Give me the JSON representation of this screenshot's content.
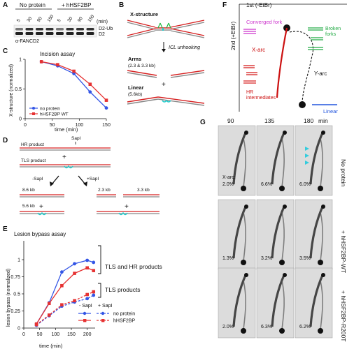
{
  "panels": {
    "A": {
      "letter": "A",
      "group_left": "No protein",
      "group_right": "+ hHSF2BP",
      "lanes": [
        "5",
        "30",
        "90",
        "150",
        "5",
        "30",
        "90",
        "150"
      ],
      "unit": "(min)",
      "band_top": "D2-Ub",
      "band_bottom": "D2",
      "antibody": "α-FANCD2"
    },
    "B": {
      "letter": "B",
      "x_structure": "X-structure",
      "step": "ICL unhooking",
      "arms": "Arms",
      "arms_size": "(2.3 & 3.3 kb)",
      "linear": "Linear",
      "linear_size": "(5.6kb)",
      "plus": "+"
    },
    "C": {
      "letter": "C"
    },
    "D": {
      "letter": "D",
      "sapi": "SapI",
      "hr_product": "HR product",
      "tls_product": "TLS product",
      "plus": "+",
      "minus_sapi": "-SapI",
      "plus_sapi": "+SapI",
      "kb86": "8.6 kb",
      "kb56": "5.6 kb",
      "kb23": "2.3 kb",
      "kb33": "3.3 kb"
    },
    "E": {
      "letter": "E"
    },
    "F": {
      "letter": "F",
      "axis_1st": "1st (-EtBr)",
      "axis_2nd": "2nd (+EtBr)",
      "converged_fork": "Converged fork",
      "x_arc": "X-arc",
      "broken_forks_1": "Broken",
      "broken_forks_2": "forks",
      "y_arc": "Y-arc",
      "hr_1": "HR",
      "hr_2": "intermediates",
      "linear": "Linear"
    },
    "G": {
      "letter": "G",
      "times": [
        "90",
        "135",
        "180"
      ],
      "unit": "min",
      "rows": [
        {
          "label": "No protein",
          "values": [
            "2.0%",
            "6.6%",
            "6.0%"
          ],
          "x_arc": "X-arc:"
        },
        {
          "label": "+ hHSF2BP-WT",
          "values": [
            "1.3%",
            "3.2%",
            "3.5%"
          ]
        },
        {
          "label": "+ hHSF2BP-R200T",
          "values": [
            "2.0%",
            "6.3%",
            "6.2%"
          ]
        }
      ]
    }
  },
  "chart_data": [
    {
      "type": "line",
      "title": "Incision assay",
      "xlabel": "time (min)",
      "ylabel": "X-structure (normalized)",
      "xlim": [
        0,
        150
      ],
      "ylim": [
        0,
        1.0
      ],
      "xticks": [
        0,
        50,
        100,
        150
      ],
      "yticks": [
        0,
        0.5,
        1.0
      ],
      "x": [
        30,
        60,
        90,
        120,
        150
      ],
      "series": [
        {
          "name": "no protein",
          "color": "#3355e6",
          "values": [
            0.96,
            0.89,
            0.76,
            0.45,
            0.18
          ]
        },
        {
          "name": "hHSF2BP WT",
          "color": "#e63232",
          "values": [
            0.96,
            0.91,
            0.8,
            0.58,
            0.31
          ]
        }
      ],
      "legend": "bottom-left"
    },
    {
      "type": "line",
      "title": "Lesion bypass assay",
      "xlabel": "time (min)",
      "ylabel": "lesion bypass (normalized)",
      "xlim": [
        0,
        225
      ],
      "ylim": [
        0,
        1.0
      ],
      "xticks": [
        0,
        50,
        100,
        150,
        200
      ],
      "yticks": [
        0,
        0.25,
        0.5,
        0.75,
        1.0
      ],
      "x": [
        40,
        80,
        120,
        160,
        200,
        220
      ],
      "series": [
        {
          "name": "no protein",
          "group": "- SapI",
          "color": "#3355e6",
          "dashed": false,
          "values": [
            0.06,
            0.37,
            0.82,
            0.94,
            0.99,
            0.96
          ]
        },
        {
          "name": "hHSF2BP",
          "group": "- SapI",
          "color": "#e63232",
          "dashed": false,
          "values": [
            0.06,
            0.36,
            0.62,
            0.8,
            0.88,
            0.84
          ]
        },
        {
          "name": "no protein",
          "group": "+ SapI",
          "color": "#3355e6",
          "dashed": true,
          "values": [
            0.04,
            0.18,
            0.32,
            0.38,
            0.43,
            0.48
          ]
        },
        {
          "name": "hHSF2BP",
          "group": "+ SapI",
          "color": "#e63232",
          "dashed": true,
          "values": [
            0.05,
            0.19,
            0.34,
            0.4,
            0.49,
            0.53
          ]
        }
      ],
      "annotations": [
        "TLS and HR products",
        "TLS products"
      ],
      "legend_groups": [
        "- SapI",
        "+ SapI"
      ],
      "legend_names": [
        "no protein",
        "hHSF2BP"
      ]
    }
  ]
}
